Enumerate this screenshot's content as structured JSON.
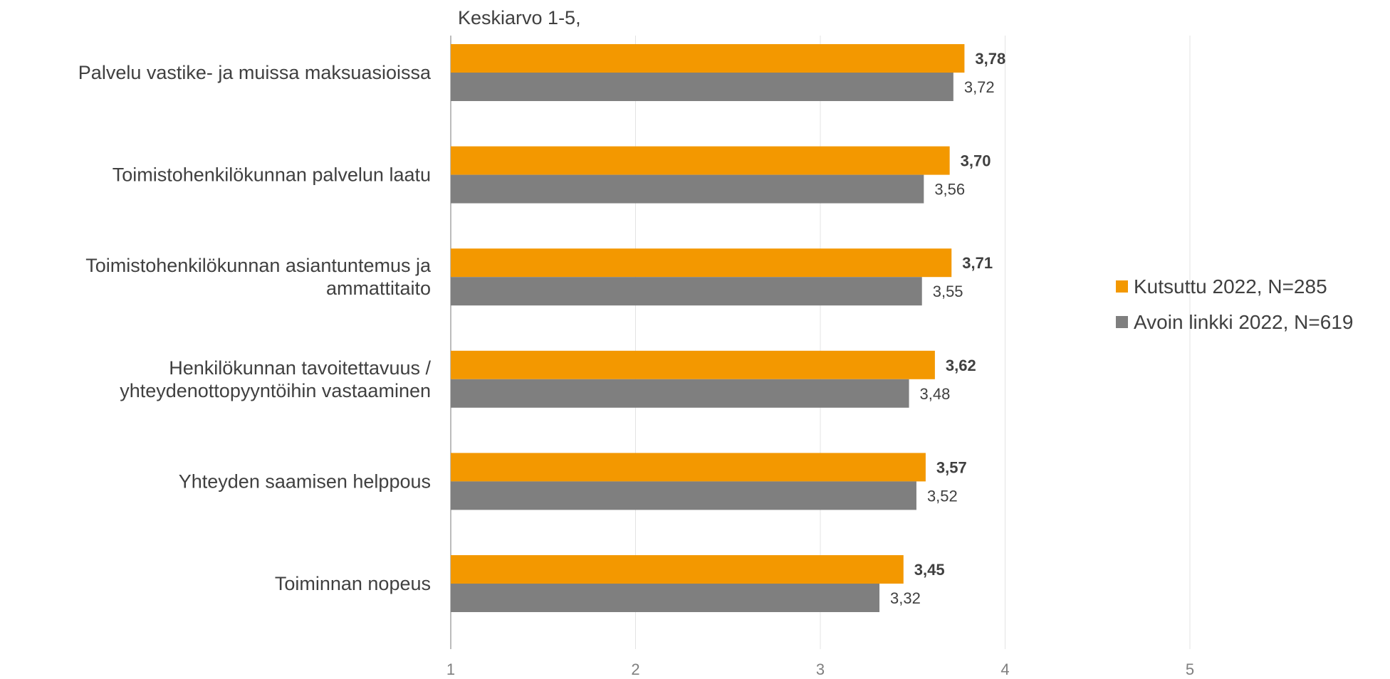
{
  "chart_data": {
    "type": "bar",
    "orientation": "horizontal",
    "title": "Keskiarvo 1-5,",
    "categories": [
      [
        "Palvelu vastike- ja muissa maksuasioissa"
      ],
      [
        "Toimistohenkilökunnan palvelun laatu"
      ],
      [
        "Toimistohenkilökunnan asiantuntemus ja",
        "ammattitaito"
      ],
      [
        "Henkilökunnan tavoitettavuus /",
        "yhteydenottopyyntöihin vastaaminen"
      ],
      [
        "Yhteyden saamisen helppous"
      ],
      [
        "Toiminnan nopeus"
      ]
    ],
    "series": [
      {
        "name": "Kutsuttu 2022, N=285",
        "color": "#f39800",
        "values": [
          3.78,
          3.7,
          3.71,
          3.62,
          3.57,
          3.45
        ],
        "labels": [
          "3,78",
          "3,70",
          "3,71",
          "3,62",
          "3,57",
          "3,45"
        ]
      },
      {
        "name": "Avoin linkki 2022, N=619",
        "color": "#7f7f7f",
        "values": [
          3.72,
          3.56,
          3.55,
          3.48,
          3.52,
          3.32
        ],
        "labels": [
          "3,72",
          "3,56",
          "3,55",
          "3,48",
          "3,52",
          "3,32"
        ]
      }
    ],
    "xlim": [
      1,
      5
    ],
    "ticks": [
      "1",
      "2",
      "3",
      "4",
      "5"
    ],
    "grid": true,
    "legend_position": "right"
  }
}
